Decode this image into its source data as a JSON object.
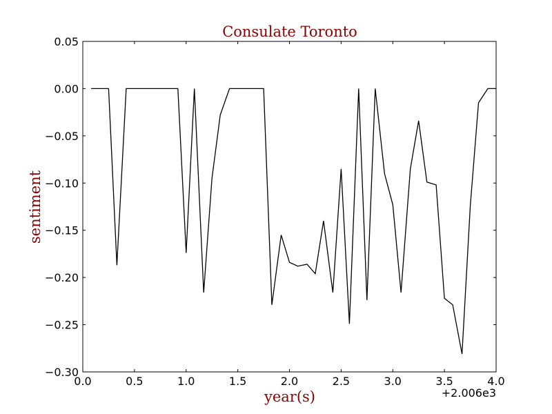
{
  "chart_data": {
    "type": "line",
    "title": "Consulate Toronto",
    "xlabel": "year(s)",
    "ylabel": "sentiment",
    "x_offset_label": "+2.006e3",
    "xlim": [
      0.0,
      4.0
    ],
    "ylim": [
      -0.3,
      0.05
    ],
    "xticks": [
      0.0,
      0.5,
      1.0,
      1.5,
      2.0,
      2.5,
      3.0,
      3.5,
      4.0
    ],
    "xtick_labels": [
      "0.0",
      "0.5",
      "1.0",
      "1.5",
      "2.0",
      "2.5",
      "3.0",
      "3.5",
      "4.0"
    ],
    "yticks": [
      0.05,
      0.0,
      -0.05,
      -0.1,
      -0.15,
      -0.2,
      -0.25,
      -0.3
    ],
    "ytick_labels": [
      "0.05",
      "0.00",
      "−0.05",
      "−0.10",
      "−0.15",
      "−0.20",
      "−0.25",
      "−0.30"
    ],
    "grid": false,
    "legend": "none",
    "colors": {
      "title": "#8b0000",
      "axis_labels": "#8b0000",
      "line": "#000000"
    },
    "series": [
      {
        "x": [
          0.08,
          0.25,
          0.33,
          0.42,
          0.92,
          1.0,
          1.08,
          1.17,
          1.25,
          1.33,
          1.42,
          1.75,
          1.83,
          1.92,
          2.0,
          2.08,
          2.17,
          2.25,
          2.33,
          2.42,
          2.5,
          2.58,
          2.67,
          2.75,
          2.83,
          2.92,
          3.0,
          3.08,
          3.17,
          3.25,
          3.33,
          3.42,
          3.5,
          3.58,
          3.67,
          3.75,
          3.83,
          3.92,
          4.0
        ],
        "values": [
          0.0,
          0.0,
          -0.187,
          0.0,
          0.0,
          -0.174,
          0.0,
          -0.216,
          -0.095,
          -0.028,
          0.0,
          0.0,
          -0.229,
          -0.155,
          -0.184,
          -0.188,
          -0.186,
          -0.196,
          -0.14,
          -0.216,
          -0.085,
          -0.249,
          0.0,
          -0.224,
          0.0,
          -0.09,
          -0.123,
          -0.216,
          -0.085,
          -0.034,
          -0.099,
          -0.102,
          -0.222,
          -0.229,
          -0.281,
          -0.124,
          -0.015,
          0.0,
          0.0
        ]
      }
    ]
  }
}
